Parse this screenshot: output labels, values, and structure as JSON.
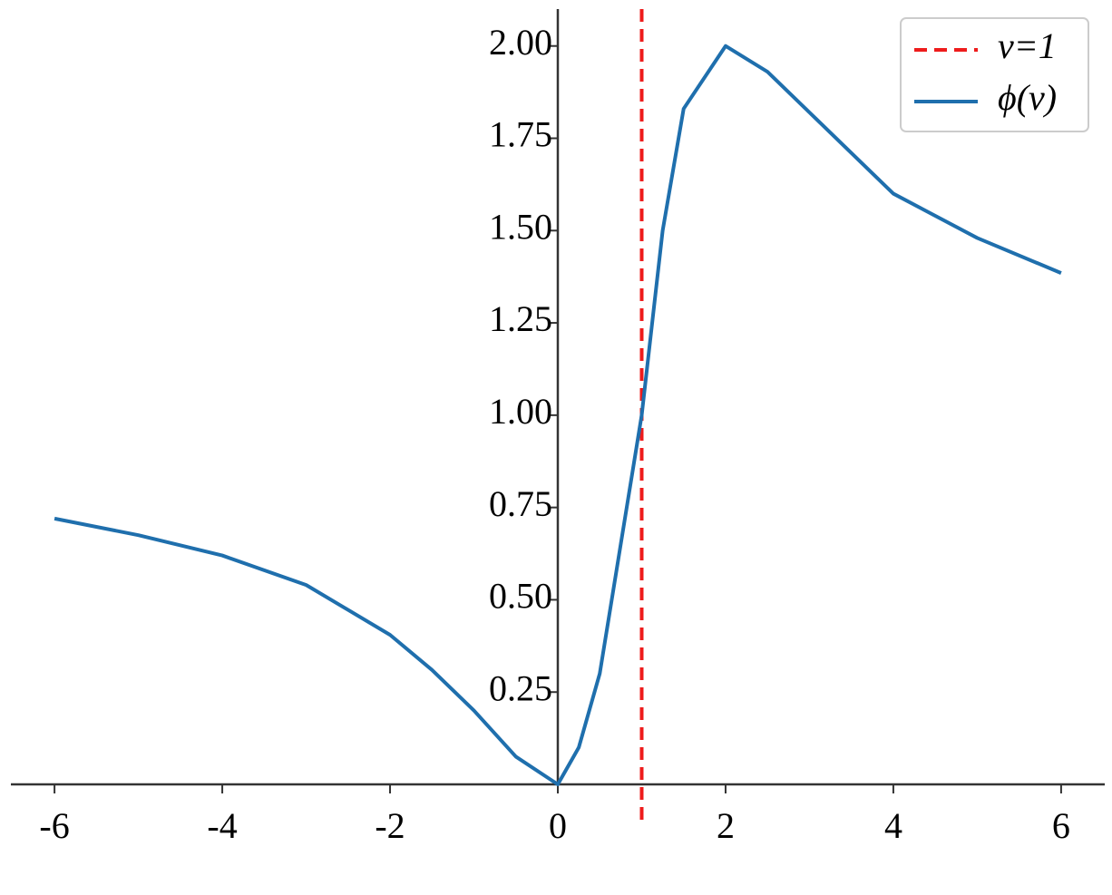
{
  "chart_data": {
    "type": "line",
    "x": [
      -6,
      -5,
      -4,
      -3,
      -2,
      -1.5,
      -1,
      -0.5,
      0,
      0.25,
      0.5,
      0.75,
      1,
      1.25,
      1.5,
      2,
      2.5,
      3,
      4,
      5,
      6
    ],
    "series": [
      {
        "name": "ϕ(v)",
        "color": "#1f6fad",
        "values": [
          0.72,
          0.675,
          0.62,
          0.54,
          0.405,
          0.31,
          0.2,
          0.075,
          0,
          0.1,
          0.3,
          0.65,
          1.0,
          1.5,
          1.83,
          2.0,
          1.93,
          1.82,
          1.6,
          1.48,
          1.385
        ]
      }
    ],
    "vline": {
      "x": 1,
      "name": "v=1",
      "color": "#ee1c1c"
    },
    "xlim": [
      -6.52,
      6.52
    ],
    "ylim": [
      0,
      2.1
    ],
    "xticks": [
      -6,
      -4,
      -2,
      0,
      2,
      4,
      6
    ],
    "yticks": [
      0.25,
      {
        "value": 0.5,
        "label": "0.50"
      },
      0.75,
      {
        "value": 1,
        "label": "1.00"
      },
      1.25,
      {
        "value": 1.5,
        "label": "1.50"
      },
      1.75,
      {
        "value": 2,
        "label": "2.00"
      }
    ],
    "legend": "upper right"
  }
}
